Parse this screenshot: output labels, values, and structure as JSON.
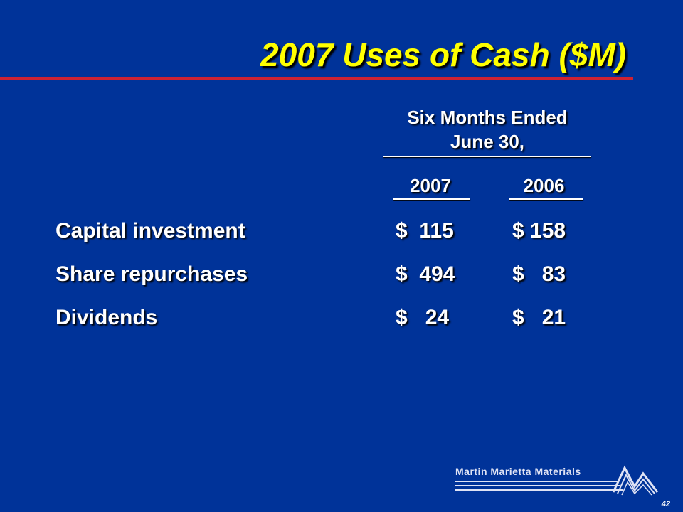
{
  "slide": {
    "title": "2007 Uses of Cash ($M)",
    "period_line1": "Six Months Ended",
    "period_line2": "June 30,",
    "year_a": "2007",
    "year_b": "2006",
    "page_number": "42"
  },
  "rows": [
    {
      "label": "Capital investment",
      "val_2007": "$  115",
      "val_2006": "$ 158"
    },
    {
      "label": "Share repurchases",
      "val_2007": "$  494",
      "val_2006": "$   83"
    },
    {
      "label": "Dividends",
      "val_2007": "$   24",
      "val_2006": "$   21"
    }
  ],
  "footer": {
    "company": "Martin Marietta Materials",
    "logo_icon": "mountain-peaks-icon"
  },
  "colors": {
    "background": "#003399",
    "title": "#ffff00",
    "rule": "#cc2233",
    "text": "#ffffff"
  }
}
